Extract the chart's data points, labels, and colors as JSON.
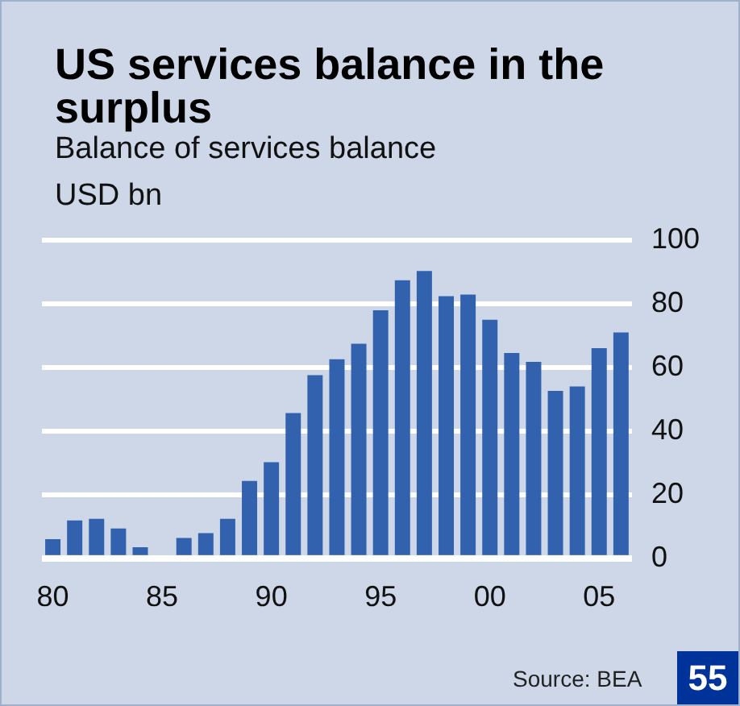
{
  "chart_data": {
    "type": "bar",
    "title": "US services balance in the surplus",
    "subtitle": "Balance of services balance",
    "ylabel": "USD bn",
    "categories": [
      "80",
      null,
      null,
      null,
      null,
      "85",
      null,
      null,
      null,
      null,
      "90",
      null,
      null,
      null,
      null,
      "95",
      null,
      null,
      null,
      null,
      "00",
      null,
      null,
      null,
      null,
      "05",
      null
    ],
    "values": [
      6,
      11.9,
      12.4,
      9.4,
      3.5,
      0,
      6.4,
      7.9,
      12.4,
      24.3,
      30.2,
      45.6,
      57.5,
      62.5,
      67.4,
      77.9,
      87.3,
      90.2,
      82.3,
      82.8,
      74.9,
      64.5,
      61.7,
      52.6,
      54,
      66,
      70.9
    ],
    "color": "#3262ad",
    "ylim": [
      0,
      100
    ],
    "yticks": [
      0,
      20,
      40,
      60,
      80,
      100
    ],
    "grid": "y",
    "annotations": [
      "Source: BEA",
      "55"
    ]
  }
}
